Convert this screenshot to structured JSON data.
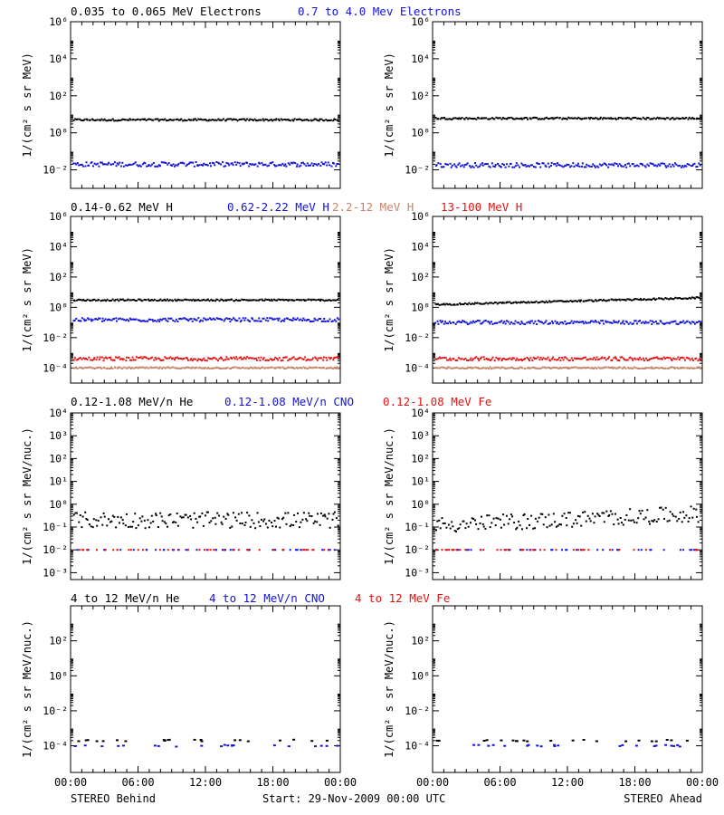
{
  "footer": {
    "left_label": "STEREO Behind",
    "center_label": "Start: 29-Nov-2009 00:00 UTC",
    "right_label": "STEREO Ahead"
  },
  "x_ticks": [
    "00:00",
    "06:00",
    "12:00",
    "18:00",
    "00:00"
  ],
  "colors": {
    "black": "#000000",
    "blue": "#1414d8",
    "tan": "#c8846a",
    "red": "#e01414"
  },
  "chart_data": [
    {
      "row": 1,
      "type": "scatter",
      "yscale": "log",
      "ylim": [
        0.001,
        1000000
      ],
      "ylabel": "1/(cm² s sr MeV)",
      "yticks": [
        "10⁻²",
        "10⁰",
        "10²",
        "10⁴",
        "10⁶"
      ],
      "xlim": [
        "00:00",
        "24:00"
      ],
      "legend": [
        {
          "text": "0.035 to 0.065 MeV Electrons",
          "color": "black"
        },
        {
          "text": "0.7 to 4.0 Mev Electrons",
          "color": "blue"
        }
      ],
      "series": [
        {
          "name": "0.035 to 0.065 MeV Electrons",
          "color": "black",
          "behind": 5,
          "ahead": 6
        },
        {
          "name": "0.7 to 4.0 Mev Electrons",
          "color": "blue",
          "behind": 0.02,
          "ahead": 0.018
        }
      ]
    },
    {
      "row": 2,
      "type": "scatter",
      "yscale": "log",
      "ylim": [
        1e-05,
        1000000
      ],
      "ylabel": "1/(cm² s sr MeV)",
      "yticks": [
        "10⁻⁴",
        "10⁻²",
        "10⁰",
        "10²",
        "10⁴",
        "10⁶"
      ],
      "xlim": [
        "00:00",
        "24:00"
      ],
      "legend": [
        {
          "text": "0.14-0.62 MeV H",
          "color": "black"
        },
        {
          "text": "0.62-2.22 MeV H",
          "color": "blue"
        },
        {
          "text": "2.2-12 MeV H",
          "color": "tan"
        },
        {
          "text": "13-100 MeV H",
          "color": "red"
        }
      ],
      "series": [
        {
          "name": "0.14-0.62 MeV H",
          "color": "black",
          "behind": 3,
          "ahead": 1.5
        },
        {
          "name": "0.62-2.22 MeV H",
          "color": "blue",
          "behind": 0.15,
          "ahead": 0.1
        },
        {
          "name": "2.2-12 MeV H",
          "color": "tan",
          "behind": 0.0001,
          "ahead": 0.0001
        },
        {
          "name": "13-100 MeV H",
          "color": "red",
          "behind": 0.0004,
          "ahead": 0.0004
        }
      ]
    },
    {
      "row": 3,
      "type": "scatter",
      "yscale": "log",
      "ylim": [
        0.0005,
        10000
      ],
      "ylabel": "1/(cm² s sr MeV/nuc.)",
      "yticks": [
        "10⁻³",
        "10⁻²",
        "10⁻¹",
        "10⁰",
        "10¹",
        "10²",
        "10³",
        "10⁴"
      ],
      "xlim": [
        "00:00",
        "24:00"
      ],
      "legend": [
        {
          "text": "0.12-1.08 MeV/n He",
          "color": "black"
        },
        {
          "text": "0.12-1.08 MeV/n CNO",
          "color": "blue"
        },
        {
          "text": "0.12-1.08 MeV Fe",
          "color": "red"
        }
      ],
      "series": [
        {
          "name": "0.12-1.08 MeV/n He",
          "color": "black",
          "behind": 0.2,
          "ahead": 0.12
        },
        {
          "name": "0.12-1.08 MeV/n CNO",
          "color": "blue",
          "behind": 0.01,
          "ahead": 0.01
        },
        {
          "name": "0.12-1.08 MeV Fe",
          "color": "red",
          "behind": 0.01,
          "ahead": 0.01
        }
      ]
    },
    {
      "row": 4,
      "type": "scatter",
      "yscale": "log",
      "ylim": [
        3e-06,
        10000
      ],
      "ylabel": "1/(cm² s sr MeV/nuc.)",
      "yticks": [
        "10⁻⁴",
        "10⁻²",
        "10⁰",
        "10²"
      ],
      "xlim": [
        "00:00",
        "24:00"
      ],
      "legend": [
        {
          "text": "4 to 12 MeV/n He",
          "color": "black"
        },
        {
          "text": "4 to 12 MeV/n CNO",
          "color": "blue"
        },
        {
          "text": "4 to 12 MeV Fe",
          "color": "red"
        }
      ],
      "series": [
        {
          "name": "4 to 12 MeV/n He",
          "color": "black",
          "behind": 0.0002,
          "ahead": 0.0002
        },
        {
          "name": "4 to 12 MeV/n CNO",
          "color": "blue",
          "behind": 0.0001,
          "ahead": 0.0001
        },
        {
          "name": "4 to 12 MeV Fe",
          "color": "red",
          "behind": null,
          "ahead": null
        }
      ]
    }
  ]
}
